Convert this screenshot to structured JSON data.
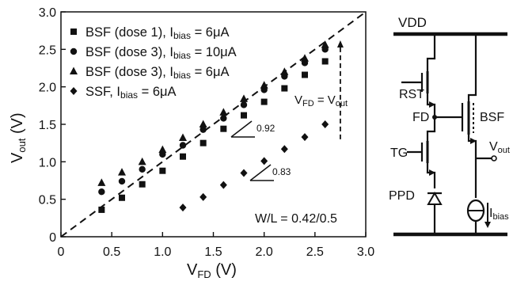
{
  "chart_data": {
    "type": "scatter",
    "xlim": [
      0,
      3.0
    ],
    "ylim": [
      0,
      3.0
    ],
    "x_ticks": [
      "0",
      "0.5",
      "1.0",
      "1.5",
      "2.0",
      "2.5",
      "3.0"
    ],
    "y_ticks": [
      "0",
      "0.5",
      "1.0",
      "1.5",
      "2.0",
      "2.5",
      "3.0"
    ],
    "xlabel": {
      "main": "V",
      "sub": "FD",
      "unit": " (V)"
    },
    "ylabel": {
      "main": "V",
      "sub": "out",
      "unit": " (V)"
    },
    "legend_position": "top-left",
    "series": [
      {
        "legend_main": "BSF (dose 1), I",
        "legend_sub": "bias",
        "legend_rest": " = 6μA",
        "marker": "square",
        "points": [
          [
            0.4,
            0.36
          ],
          [
            0.6,
            0.52
          ],
          [
            0.8,
            0.7
          ],
          [
            1.0,
            0.88
          ],
          [
            1.2,
            1.07
          ],
          [
            1.4,
            1.25
          ],
          [
            1.6,
            1.44
          ],
          [
            1.8,
            1.62
          ],
          [
            2.0,
            1.8
          ],
          [
            2.2,
            1.98
          ],
          [
            2.4,
            2.16
          ],
          [
            2.6,
            2.34
          ]
        ]
      },
      {
        "legend_main": "BSF (dose 3), I",
        "legend_sub": "bias",
        "legend_rest": " = 10μA",
        "marker": "circle",
        "points": [
          [
            0.4,
            0.6
          ],
          [
            0.6,
            0.74
          ],
          [
            0.8,
            0.9
          ],
          [
            1.0,
            1.1
          ],
          [
            1.2,
            1.22
          ],
          [
            1.4,
            1.43
          ],
          [
            1.6,
            1.58
          ],
          [
            1.8,
            1.76
          ],
          [
            2.0,
            1.96
          ],
          [
            2.2,
            2.14
          ],
          [
            2.4,
            2.32
          ],
          [
            2.6,
            2.5
          ]
        ]
      },
      {
        "legend_main": "BSF (dose 3), I",
        "legend_sub": "bias",
        "legend_rest": " = 6μA",
        "marker": "triangle",
        "points": [
          [
            0.4,
            0.72
          ],
          [
            0.6,
            0.86
          ],
          [
            0.8,
            1.0
          ],
          [
            1.0,
            1.16
          ],
          [
            1.2,
            1.32
          ],
          [
            1.4,
            1.5
          ],
          [
            1.6,
            1.66
          ],
          [
            1.8,
            1.84
          ],
          [
            2.0,
            2.02
          ],
          [
            2.2,
            2.2
          ],
          [
            2.4,
            2.38
          ],
          [
            2.6,
            2.56
          ]
        ]
      },
      {
        "legend_main": "SSF, I",
        "legend_sub": "bias",
        "legend_rest": " = 6μA",
        "marker": "diamond",
        "points": [
          [
            1.2,
            0.39
          ],
          [
            1.4,
            0.53
          ],
          [
            1.6,
            0.69
          ],
          [
            1.8,
            0.85
          ],
          [
            2.0,
            1.01
          ],
          [
            2.2,
            1.17
          ],
          [
            2.4,
            1.33
          ],
          [
            2.6,
            1.5
          ]
        ]
      }
    ],
    "reference_line": {
      "style": "dashed",
      "x": [
        0,
        3.0
      ],
      "y": [
        0,
        3.0
      ]
    },
    "arrow_x": 2.75,
    "arrow_y_range": [
      1.3,
      2.62
    ],
    "annotations": {
      "arrow_label": {
        "main": "V",
        "sub": "FD",
        "rest": " = V",
        "sub2": "out"
      },
      "slope_high": "0.92",
      "slope_low": "0.83",
      "wl": "W/L = 0.42/0.5"
    }
  },
  "schematic": {
    "vdd": "VDD",
    "rst": "RST",
    "fd": "FD",
    "bsf": "BSF",
    "tg": "TG",
    "ppd": "PPD",
    "vout_main": "V",
    "vout_sub": "out",
    "ibias_main": "I",
    "ibias_sub": "bias"
  }
}
